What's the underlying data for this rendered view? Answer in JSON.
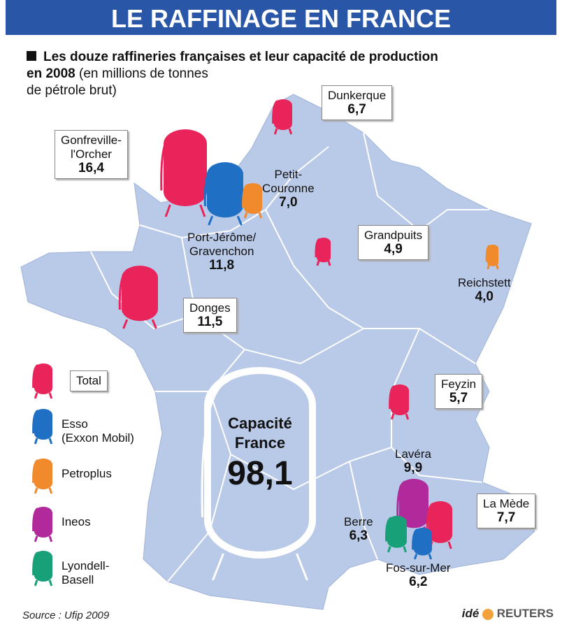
{
  "header": {
    "title": "LE RAFFINAGE EN FRANCE"
  },
  "subtitle": {
    "line1": "Les douze raffineries françaises et leur capacité de production",
    "line2_bold": "en 2008",
    "line2": "(en millions de tonnes",
    "line3": "de pétrole brut)"
  },
  "refineries": [
    {
      "name": [
        "Dunkerque"
      ],
      "capacity": "6,7"
    },
    {
      "name": [
        "Gonfreville-",
        "l'Orcher"
      ],
      "capacity": "16,4"
    },
    {
      "name": [
        "Port-Jérôme/",
        "Gravenchon"
      ],
      "capacity": "11,8"
    },
    {
      "name": [
        "Petit-",
        "Couronne"
      ],
      "capacity": "7,0"
    },
    {
      "name": [
        "Grandpuits"
      ],
      "capacity": "4,9"
    },
    {
      "name": [
        "Reichstett"
      ],
      "capacity": "4,0"
    },
    {
      "name": [
        "Donges"
      ],
      "capacity": "11,5"
    },
    {
      "name": [
        "Feyzin"
      ],
      "capacity": "5,7"
    },
    {
      "name": [
        "Lavéra"
      ],
      "capacity": "9,9"
    },
    {
      "name": [
        "La Mède"
      ],
      "capacity": "7,7"
    },
    {
      "name": [
        "Berre"
      ],
      "capacity": "6,3"
    },
    {
      "name": [
        "Fos-sur-Mer"
      ],
      "capacity": "6,2"
    }
  ],
  "legend": [
    {
      "label": [
        "Total"
      ],
      "color": "#e8245a"
    },
    {
      "label": [
        "Esso",
        "(Exxon Mobil)"
      ],
      "color": "#1f6fc4"
    },
    {
      "label": [
        "Petroplus"
      ],
      "color": "#f08a2c"
    },
    {
      "label": [
        "Ineos"
      ],
      "color": "#b02a9c"
    },
    {
      "label": [
        "Lyondell-",
        "Basell"
      ],
      "color": "#18a078"
    }
  ],
  "total": {
    "label": [
      "Capacité",
      "France"
    ],
    "value": "98,1"
  },
  "source": "Source : Ufip 2009",
  "credit": {
    "ide": "idé",
    "reuters": "REUTERS"
  }
}
